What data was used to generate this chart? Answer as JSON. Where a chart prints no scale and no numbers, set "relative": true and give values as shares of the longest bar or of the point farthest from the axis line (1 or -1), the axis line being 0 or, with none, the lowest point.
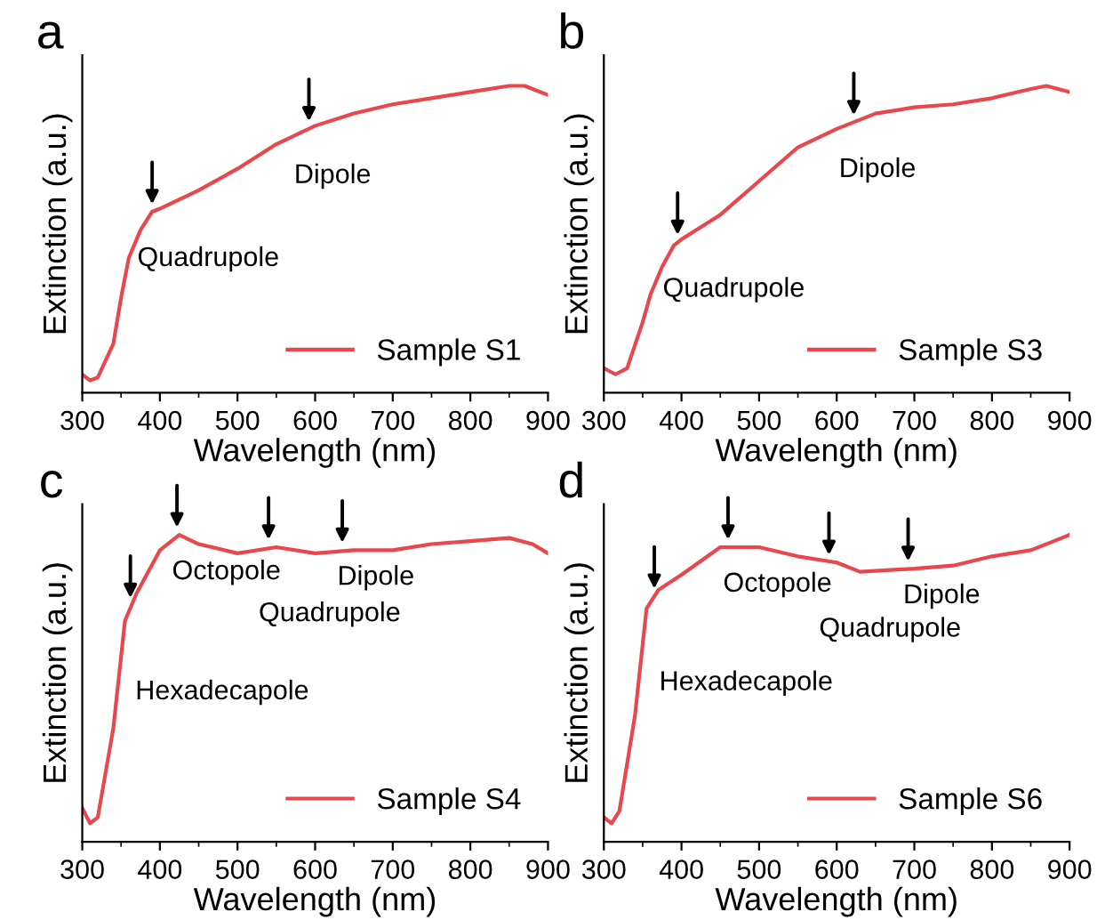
{
  "chart_data": [
    {
      "type": "line",
      "title": "a",
      "xlabel": "Wavelength (nm)",
      "ylabel": "Extinction (a.u.)",
      "relative": true,
      "xlim": [
        300,
        900
      ],
      "xticks": [
        300,
        400,
        500,
        600,
        700,
        800,
        900
      ],
      "legend": "bottom right",
      "grid": false,
      "series": [
        {
          "name": "Sample S1",
          "color": "#e8474c",
          "x": [
            300,
            310,
            320,
            340,
            350,
            360,
            375,
            390,
            400,
            450,
            500,
            550,
            600,
            650,
            700,
            750,
            800,
            850,
            870,
            900
          ],
          "values": [
            0.06,
            0.04,
            0.05,
            0.16,
            0.31,
            0.44,
            0.53,
            0.59,
            0.6,
            0.66,
            0.73,
            0.81,
            0.87,
            0.91,
            0.94,
            0.96,
            0.98,
            1.0,
            1.0,
            0.97
          ]
        }
      ],
      "annotations": [
        {
          "text": "Quadrupole",
          "x": 390,
          "y": 0.59
        },
        {
          "text": "Dipole",
          "x": 592,
          "y": 0.86
        }
      ]
    },
    {
      "type": "line",
      "title": "b",
      "xlabel": "Wavelength (nm)",
      "ylabel": "Extinction (a.u.)",
      "relative": true,
      "xlim": [
        300,
        900
      ],
      "xticks": [
        300,
        400,
        500,
        600,
        700,
        800,
        900
      ],
      "legend": "bottom right",
      "grid": false,
      "series": [
        {
          "name": "Sample S3",
          "color": "#e8474c",
          "x": [
            300,
            315,
            330,
            350,
            360,
            375,
            390,
            400,
            450,
            500,
            550,
            600,
            650,
            700,
            750,
            800,
            850,
            870,
            900
          ],
          "values": [
            0.08,
            0.06,
            0.08,
            0.23,
            0.32,
            0.41,
            0.48,
            0.5,
            0.58,
            0.69,
            0.8,
            0.86,
            0.91,
            0.93,
            0.94,
            0.96,
            0.99,
            1.0,
            0.98
          ]
        }
      ],
      "annotations": [
        {
          "text": "Quadrupole",
          "x": 395,
          "y": 0.49
        },
        {
          "text": "Dipole",
          "x": 622,
          "y": 0.88
        }
      ]
    },
    {
      "type": "line",
      "title": "c",
      "xlabel": "Wavelength (nm)",
      "ylabel": "Extinction (a.u.)",
      "relative": true,
      "xlim": [
        300,
        900
      ],
      "xticks": [
        300,
        400,
        500,
        600,
        700,
        800,
        900
      ],
      "legend": "bottom right",
      "grid": false,
      "series": [
        {
          "name": "Sample S4",
          "color": "#e8474c",
          "x": [
            300,
            310,
            320,
            340,
            355,
            370,
            400,
            425,
            450,
            500,
            550,
            600,
            650,
            700,
            750,
            800,
            850,
            880,
            900
          ],
          "values": [
            0.11,
            0.06,
            0.08,
            0.37,
            0.72,
            0.81,
            0.95,
            1.0,
            0.97,
            0.94,
            0.96,
            0.94,
            0.95,
            0.95,
            0.97,
            0.98,
            0.99,
            0.97,
            0.94
          ]
        }
      ],
      "annotations": [
        {
          "text": "Hexadecapole",
          "x": 362,
          "y": 0.77
        },
        {
          "text": "Octopole",
          "x": 422,
          "y": 1.0
        },
        {
          "text": "Quadrupole",
          "x": 540,
          "y": 0.96
        },
        {
          "text": "Dipole",
          "x": 635,
          "y": 0.95
        }
      ]
    },
    {
      "type": "line",
      "title": "d",
      "xlabel": "Wavelength (nm)",
      "ylabel": "Extinction (a.u.)",
      "relative": true,
      "xlim": [
        300,
        900
      ],
      "xticks": [
        300,
        400,
        500,
        600,
        700,
        800,
        900
      ],
      "legend": "bottom right",
      "grid": false,
      "series": [
        {
          "name": "Sample S6",
          "color": "#e8474c",
          "x": [
            300,
            310,
            320,
            340,
            355,
            370,
            400,
            450,
            500,
            550,
            600,
            630,
            700,
            750,
            800,
            850,
            880,
            900
          ],
          "values": [
            0.08,
            0.06,
            0.1,
            0.41,
            0.76,
            0.82,
            0.87,
            0.96,
            0.96,
            0.93,
            0.91,
            0.88,
            0.89,
            0.9,
            0.93,
            0.95,
            0.98,
            1.0
          ]
        }
      ],
      "annotations": [
        {
          "text": "Hexadecapole",
          "x": 365,
          "y": 0.8
        },
        {
          "text": "Octopole",
          "x": 460,
          "y": 0.96
        },
        {
          "text": "Quadrupole",
          "x": 590,
          "y": 0.91
        },
        {
          "text": "Dipole",
          "x": 692,
          "y": 0.89
        }
      ]
    }
  ]
}
